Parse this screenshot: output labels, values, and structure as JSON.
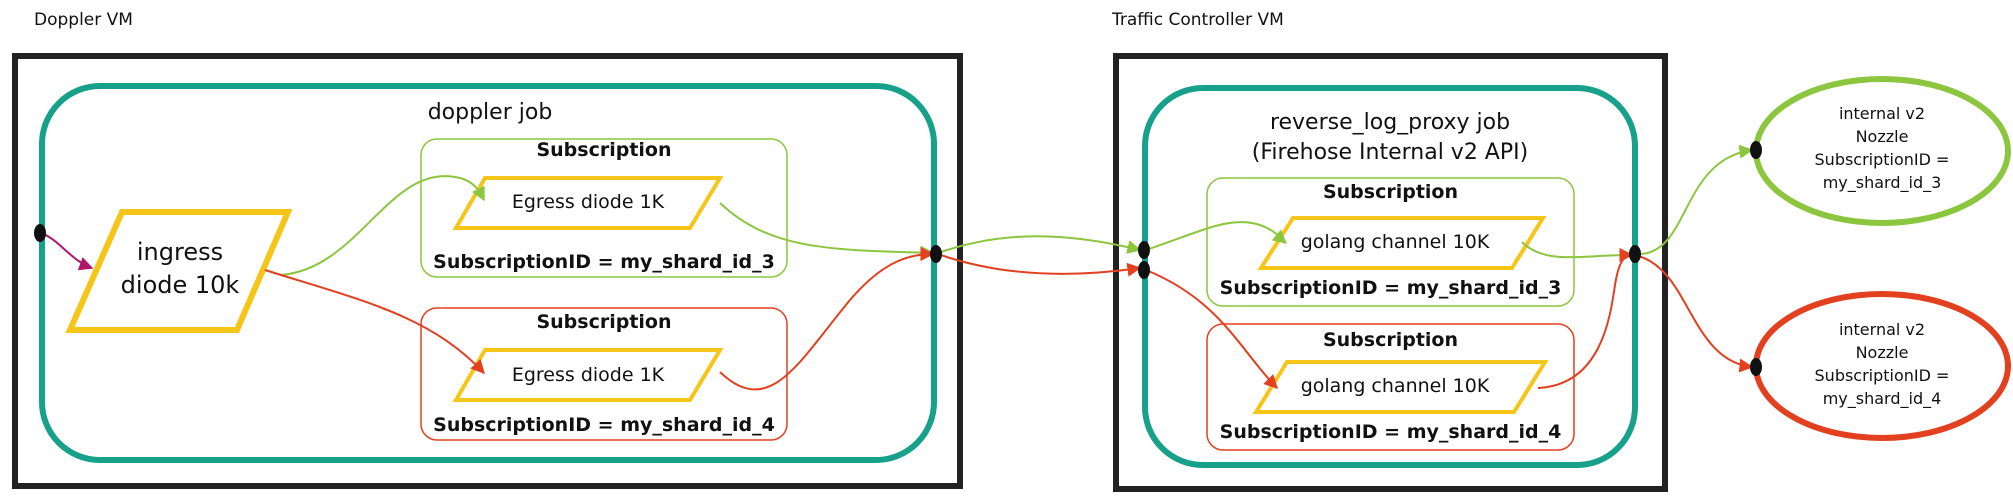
{
  "diagram": {
    "doppler_vm": {
      "label": "Doppler VM",
      "job_label": "doppler job",
      "ingress": {
        "line1": "ingress",
        "line2": "diode 10k"
      },
      "subscriptions": [
        {
          "title": "Subscription",
          "node": "Egress diode 1K",
          "id": "SubscriptionID = my_shard_id_3",
          "color": "#8cc63f"
        },
        {
          "title": "Subscription",
          "node": "Egress diode 1K",
          "id": "SubscriptionID = my_shard_id_4",
          "color": "#e2401f"
        }
      ]
    },
    "tc_vm": {
      "label": "Traffic Controller VM",
      "job_line1": "reverse_log_proxy job",
      "job_line2": "(Firehose Internal v2 API)",
      "subscriptions": [
        {
          "title": "Subscription",
          "node": "golang channel 10K",
          "id": "SubscriptionID = my_shard_id_3",
          "color": "#8cc63f"
        },
        {
          "title": "Subscription",
          "node": "golang channel 10K",
          "id": "SubscriptionID = my_shard_id_4",
          "color": "#e2401f"
        }
      ]
    },
    "nozzles": [
      {
        "lines": [
          "internal v2",
          "Nozzle",
          "SubscriptionID =",
          "my_shard_id_3"
        ],
        "color": "#8cc63f"
      },
      {
        "lines": [
          "internal v2",
          "Nozzle",
          "SubscriptionID =",
          "my_shard_id_4"
        ],
        "color": "#e2401f"
      }
    ],
    "colors": {
      "vm_border": "#222222",
      "job_border": "#17a08a",
      "node_fill_border": "#f5c518",
      "green_flow": "#8cc63f",
      "red_flow": "#e2401f",
      "ingress_arrow": "#b0176a"
    }
  }
}
